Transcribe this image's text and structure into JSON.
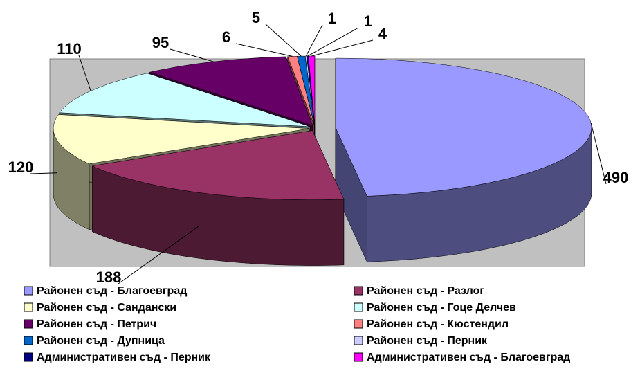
{
  "chart_data": {
    "type": "pie3d",
    "categories": [
      "Районен съд - Благоевград",
      "Районен съд - Разлог",
      "Районен съд - Сандански",
      "Районен съд - Гоце Делчев",
      "Районен съд - Петрич",
      "Районен съд - Кюстендил",
      "Районен съд - Дупница",
      "Районен съд - Перник",
      "Административен съд - Перник",
      "Административен съд - Благоевград"
    ],
    "values": [
      490,
      188,
      120,
      110,
      95,
      6,
      5,
      1,
      1,
      4
    ],
    "colors": [
      "#9999ff",
      "#993366",
      "#ffffcc",
      "#ccffff",
      "#660066",
      "#ff8080",
      "#0066cc",
      "#ccccff",
      "#000080",
      "#ff00ff"
    ],
    "legend": "bottom"
  }
}
